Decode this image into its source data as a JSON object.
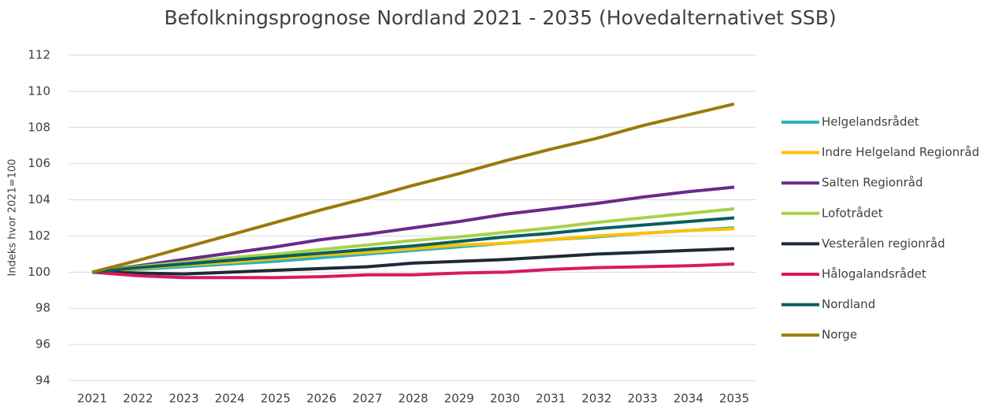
{
  "chart_data": {
    "type": "line",
    "title": "Befolkningsprognose  Nordland 2021 - 2035 (Hovedalternativet SSB)",
    "ylabel": "Indeks hvor 2021=100",
    "categories": [
      "2021",
      "2022",
      "2023",
      "2024",
      "2025",
      "2026",
      "2027",
      "2028",
      "2029",
      "2030",
      "2031",
      "2032",
      "2033",
      "2034",
      "2035"
    ],
    "ylim": [
      94,
      112
    ],
    "yticks": [
      94,
      96,
      98,
      100,
      102,
      104,
      106,
      108,
      110,
      112
    ],
    "grid": true,
    "legend": "right",
    "series": [
      {
        "name": "Helgelandsrådet",
        "color": "#2ab3c0",
        "values": [
          100,
          100.15,
          100.3,
          100.45,
          100.6,
          100.8,
          101.0,
          101.2,
          101.4,
          101.6,
          101.8,
          101.95,
          102.15,
          102.3,
          102.45
        ]
      },
      {
        "name": "Indre Helgeland Regionråd",
        "color": "#ffc000",
        "values": [
          100,
          100.2,
          100.4,
          100.55,
          100.75,
          100.95,
          101.1,
          101.3,
          101.5,
          101.6,
          101.8,
          102.0,
          102.15,
          102.3,
          102.4
        ]
      },
      {
        "name": "Salten Regionråd",
        "color": "#6a2a8a",
        "values": [
          100,
          100.35,
          100.7,
          101.05,
          101.4,
          101.8,
          102.1,
          102.45,
          102.8,
          103.2,
          103.5,
          103.8,
          104.15,
          104.45,
          104.7
        ]
      },
      {
        "name": "Lofotrådet",
        "color": "#a9d14a",
        "values": [
          100,
          100.3,
          100.55,
          100.8,
          101.0,
          101.25,
          101.5,
          101.75,
          101.95,
          102.2,
          102.45,
          102.75,
          103.0,
          103.25,
          103.5
        ]
      },
      {
        "name": "Vesterålen regionråd",
        "color": "#1e2a36",
        "values": [
          100,
          99.95,
          99.9,
          100.0,
          100.1,
          100.2,
          100.3,
          100.5,
          100.6,
          100.7,
          100.85,
          101.0,
          101.1,
          101.2,
          101.3
        ]
      },
      {
        "name": "Hålogalandsrådet",
        "color": "#d81b60",
        "values": [
          100,
          99.8,
          99.7,
          99.7,
          99.7,
          99.75,
          99.85,
          99.85,
          99.95,
          100.0,
          100.15,
          100.25,
          100.3,
          100.35,
          100.45
        ]
      },
      {
        "name": "Nordland",
        "color": "#06605f",
        "values": [
          100,
          100.25,
          100.45,
          100.65,
          100.85,
          101.05,
          101.25,
          101.45,
          101.7,
          101.95,
          102.15,
          102.4,
          102.6,
          102.8,
          103.0
        ]
      },
      {
        "name": "Norge",
        "color": "#9a7a0a",
        "values": [
          100,
          100.65,
          101.35,
          102.05,
          102.75,
          103.45,
          104.1,
          104.8,
          105.45,
          106.15,
          106.8,
          107.4,
          108.1,
          108.7,
          109.3
        ]
      }
    ]
  }
}
